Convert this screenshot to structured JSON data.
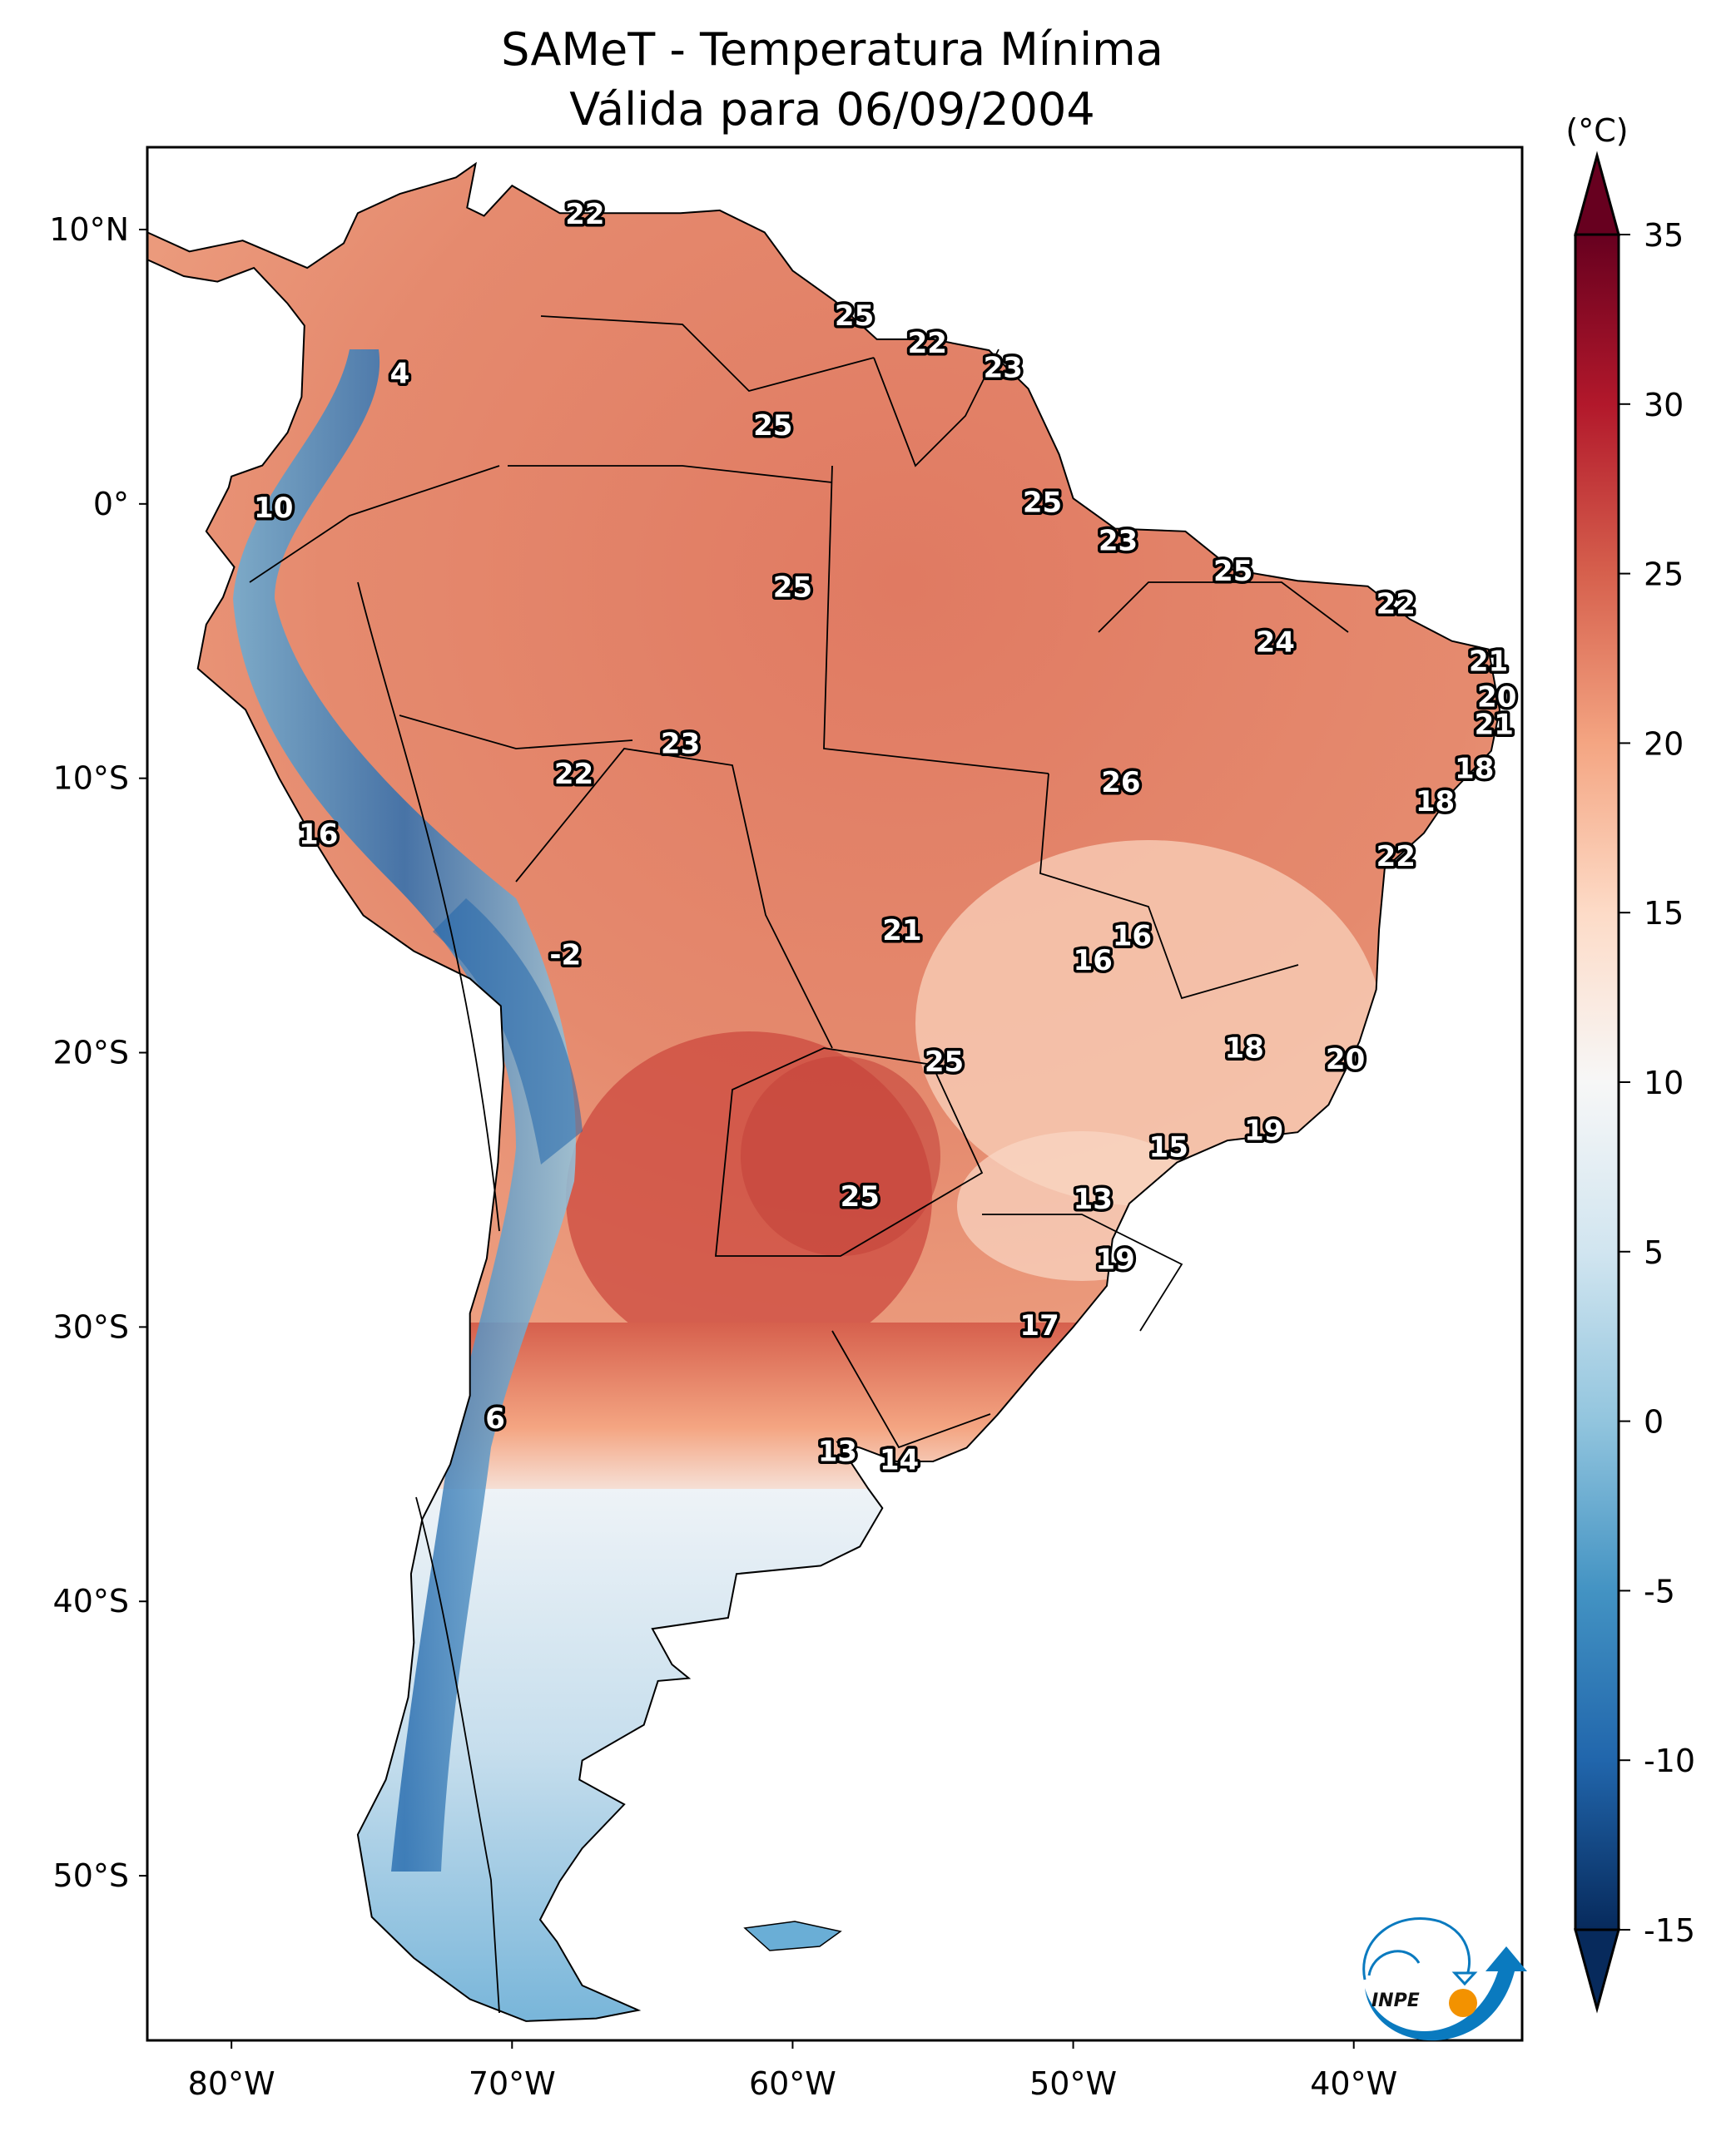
{
  "chart_data": {
    "type": "heatmap",
    "title": "SAMeT - Temperatura Mínima",
    "subtitle": "Válida para 06/09/2004",
    "xlabel": "",
    "ylabel": "",
    "x_ticks": [
      {
        "value": -80,
        "label": "80°W"
      },
      {
        "value": -70,
        "label": "70°W"
      },
      {
        "value": -60,
        "label": "60°W"
      },
      {
        "value": -50,
        "label": "50°W"
      },
      {
        "value": -40,
        "label": "40°W"
      }
    ],
    "y_ticks": [
      {
        "value": 10,
        "label": "10°N"
      },
      {
        "value": 0,
        "label": "0°"
      },
      {
        "value": -10,
        "label": "10°S"
      },
      {
        "value": -20,
        "label": "20°S"
      },
      {
        "value": -30,
        "label": "30°S"
      },
      {
        "value": -40,
        "label": "40°S"
      },
      {
        "value": -50,
        "label": "50°S"
      }
    ],
    "xlim": [
      -83,
      -34
    ],
    "ylim": [
      -56,
      13
    ],
    "colorbar": {
      "label": "(°C)",
      "range": [
        -15,
        35
      ],
      "extend": "both",
      "colormap": "RdBu_r",
      "ticks": [
        35,
        30,
        25,
        20,
        15,
        10,
        5,
        0,
        -5,
        -10,
        -15
      ],
      "tick_labels": [
        "35",
        "30",
        "25",
        "20",
        "15",
        "10",
        "5",
        "0",
        "-5",
        "-10",
        "-15"
      ],
      "stops": [
        {
          "value": -15,
          "color": "#072a5c"
        },
        {
          "value": -10,
          "color": "#2166ac"
        },
        {
          "value": -5,
          "color": "#4393c3"
        },
        {
          "value": 0,
          "color": "#92c5de"
        },
        {
          "value": 5,
          "color": "#d1e5f0"
        },
        {
          "value": 10,
          "color": "#f7f7f7"
        },
        {
          "value": 15,
          "color": "#fddbc7"
        },
        {
          "value": 20,
          "color": "#f4a582"
        },
        {
          "value": 25,
          "color": "#d6604d"
        },
        {
          "value": 30,
          "color": "#b2182b"
        },
        {
          "value": 35,
          "color": "#67001f"
        }
      ]
    },
    "stations": [
      {
        "lon": -67.4,
        "lat": 10.5,
        "value": "22"
      },
      {
        "lon": -74.0,
        "lat": 4.7,
        "value": "4"
      },
      {
        "lon": -78.5,
        "lat": -0.2,
        "value": "10"
      },
      {
        "lon": -57.8,
        "lat": 6.8,
        "value": "25"
      },
      {
        "lon": -55.2,
        "lat": 5.8,
        "value": "22"
      },
      {
        "lon": -52.5,
        "lat": 4.9,
        "value": "23"
      },
      {
        "lon": -60.7,
        "lat": 2.8,
        "value": "25"
      },
      {
        "lon": -51.1,
        "lat": 0.0,
        "value": "25"
      },
      {
        "lon": -48.4,
        "lat": -1.4,
        "value": "23"
      },
      {
        "lon": -60.0,
        "lat": -3.1,
        "value": "25"
      },
      {
        "lon": -44.3,
        "lat": -2.5,
        "value": "25"
      },
      {
        "lon": -38.5,
        "lat": -3.7,
        "value": "22"
      },
      {
        "lon": -42.8,
        "lat": -5.1,
        "value": "24"
      },
      {
        "lon": -35.2,
        "lat": -5.8,
        "value": "21"
      },
      {
        "lon": -34.9,
        "lat": -7.1,
        "value": "20"
      },
      {
        "lon": -35.0,
        "lat": -8.1,
        "value": "21"
      },
      {
        "lon": -35.7,
        "lat": -9.7,
        "value": "18"
      },
      {
        "lon": -37.1,
        "lat": -10.9,
        "value": "18"
      },
      {
        "lon": -38.5,
        "lat": -12.9,
        "value": "22"
      },
      {
        "lon": -64.0,
        "lat": -8.8,
        "value": "23"
      },
      {
        "lon": -67.8,
        "lat": -9.9,
        "value": "22"
      },
      {
        "lon": -48.3,
        "lat": -10.2,
        "value": "26"
      },
      {
        "lon": -76.9,
        "lat": -12.1,
        "value": "16"
      },
      {
        "lon": -56.1,
        "lat": -15.6,
        "value": "21"
      },
      {
        "lon": -47.9,
        "lat": -15.8,
        "value": "16"
      },
      {
        "lon": -49.3,
        "lat": -16.7,
        "value": "16"
      },
      {
        "lon": -68.1,
        "lat": -16.5,
        "value": "-2"
      },
      {
        "lon": -43.9,
        "lat": -19.9,
        "value": "18"
      },
      {
        "lon": -40.3,
        "lat": -20.3,
        "value": "20"
      },
      {
        "lon": -54.6,
        "lat": -20.4,
        "value": "25"
      },
      {
        "lon": -43.2,
        "lat": -22.9,
        "value": "19"
      },
      {
        "lon": -46.6,
        "lat": -23.5,
        "value": "15"
      },
      {
        "lon": -57.6,
        "lat": -25.3,
        "value": "25"
      },
      {
        "lon": -49.3,
        "lat": -25.4,
        "value": "13"
      },
      {
        "lon": -48.5,
        "lat": -27.6,
        "value": "19"
      },
      {
        "lon": -51.2,
        "lat": -30.0,
        "value": "17"
      },
      {
        "lon": -70.6,
        "lat": -33.4,
        "value": "6"
      },
      {
        "lon": -58.4,
        "lat": -34.6,
        "value": "13"
      },
      {
        "lon": -56.2,
        "lat": -34.9,
        "value": "14"
      }
    ]
  },
  "logo": {
    "text": "INPE",
    "blue": "#0a7abf",
    "orange": "#f39200"
  }
}
